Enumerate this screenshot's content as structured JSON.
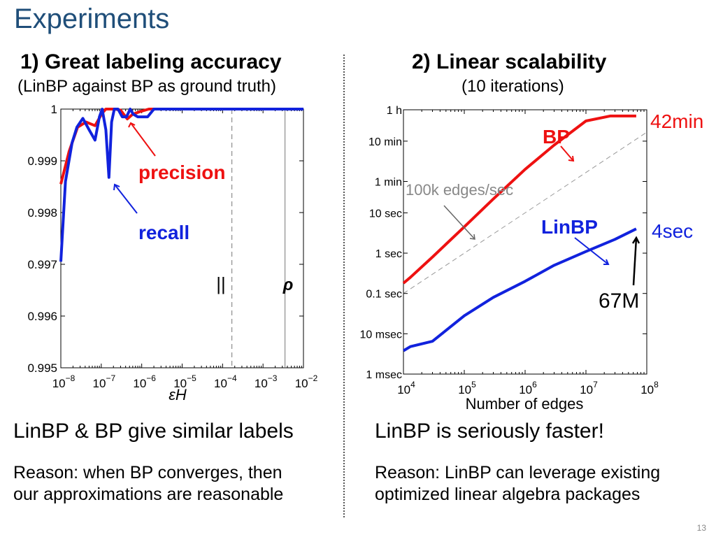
{
  "slide": {
    "title": "Experiments",
    "page_number": "13"
  },
  "left": {
    "heading": "1) Great labeling accuracy",
    "subheading": "(LinBP against BP as ground truth)",
    "conclusion": "LinBP & BP give similar labels",
    "reason_lines": [
      "Reason: when BP converges, then",
      "our approximations are reasonable"
    ]
  },
  "right": {
    "heading": "2) Linear scalability",
    "subheading": "(10 iterations)",
    "conclusion": "LinBP is seriously faster!",
    "reason_lines": [
      "Reason: LinBP can leverage existing",
      "optimized linear algebra packages"
    ]
  },
  "chart_data": [
    {
      "type": "line",
      "xlabel": "εH",
      "ylabel": "",
      "x_scale": "log",
      "xlim": [
        1e-08,
        0.01
      ],
      "ylim": [
        0.995,
        1
      ],
      "x_tick_exponents": [
        -8,
        -7,
        -6,
        -5,
        -4,
        -3,
        -2
      ],
      "y_ticks": [
        "0.995",
        "0.996",
        "0.997",
        "0.998",
        "0.999",
        "1"
      ],
      "series": [
        {
          "name": "precision",
          "color": "#ee1111",
          "x": [
            1e-08,
            1.6e-08,
            2.6e-08,
            4.2e-08,
            7e-08,
            1.05e-07,
            1.3e-07,
            1.6e-07,
            2.2e-07,
            3e-07,
            4.4e-07,
            6e-07,
            9e-07,
            1.5e-06,
            1e-05,
            0.0001,
            0.001,
            0.01
          ],
          "y": [
            0.99855,
            0.99918,
            0.99965,
            0.99975,
            0.99968,
            0.99992,
            1.0,
            1.0,
            1.0,
            0.99998,
            0.99981,
            0.9999,
            0.99995,
            1.0,
            1.0,
            1.0,
            1.0,
            1.0
          ]
        },
        {
          "name": "recall",
          "color": "#1122dd",
          "x": [
            1e-08,
            1.3e-08,
            1.9e-08,
            2.5e-08,
            3.5e-08,
            5e-08,
            7e-08,
            9e-08,
            1.05e-07,
            1.3e-07,
            1.55e-07,
            1.8e-07,
            2.1e-07,
            2.6e-07,
            3.3e-07,
            4.2e-07,
            5.2e-07,
            6.2e-07,
            8e-07,
            1.4e-06,
            2e-06,
            1e-05,
            0.0001,
            0.001,
            0.01
          ],
          "y": [
            0.99705,
            0.9986,
            0.99935,
            0.99965,
            0.99982,
            0.9996,
            0.9994,
            0.99985,
            1.0,
            0.9996,
            0.99868,
            0.99975,
            1.0,
            1.0,
            0.99985,
            0.99985,
            1.0,
            0.9999,
            0.99985,
            0.99985,
            1.0,
            1.0,
            1.0,
            1.0,
            1.0
          ]
        }
      ],
      "annotations": {
        "precision_label": "precision",
        "recall_label": "recall",
        "parallel_symbol": "||",
        "rho_symbol": "ρ"
      },
      "vertical_lines": {
        "dashed_x": 0.00017,
        "solid_x": 0.0035
      },
      "grid": false,
      "legend": "none"
    },
    {
      "type": "line",
      "xlabel": "Number of edges",
      "ylabel": "",
      "x_scale": "log",
      "y_scale": "log",
      "xlim": [
        10000,
        100000000
      ],
      "ylim_seconds": [
        0.001,
        3600
      ],
      "x_tick_exponents": [
        4,
        5,
        6,
        7,
        8
      ],
      "y_ticks": [
        {
          "label": "1 msec",
          "seconds": 0.001
        },
        {
          "label": "10 msec",
          "seconds": 0.01
        },
        {
          "label": "0.1 sec",
          "seconds": 0.1
        },
        {
          "label": "1 sec",
          "seconds": 1
        },
        {
          "label": "10 sec",
          "seconds": 10
        },
        {
          "label": "1 min",
          "seconds": 60
        },
        {
          "label": "10 min",
          "seconds": 600
        },
        {
          "label": "1 h",
          "seconds": 3600
        }
      ],
      "series": [
        {
          "name": "BP",
          "color": "#ee1111",
          "x": [
            10000,
            13000,
            30000,
            100000,
            300000,
            1000000,
            3000000,
            10000000,
            25000000,
            67000000
          ],
          "y": [
            0.18,
            0.25,
            0.8,
            4.5,
            22,
            120,
            480,
            1900,
            2520,
            2520
          ]
        },
        {
          "name": "LinBP",
          "color": "#1122dd",
          "x": [
            10000,
            13000,
            30000,
            100000,
            300000,
            1000000,
            3000000,
            10000000,
            30000000,
            67000000
          ],
          "y": [
            0.0038,
            0.0048,
            0.0065,
            0.028,
            0.08,
            0.2,
            0.5,
            1.1,
            2.2,
            4.0
          ]
        }
      ],
      "reference_line": {
        "label": "100k edges/sec",
        "rate_edges_per_sec": 100000
      },
      "annotations": {
        "bp_label": "BP",
        "linbp_label": "LinBP",
        "bp_end_label": "42min",
        "linbp_end_label": "4sec",
        "size_label": "67M"
      },
      "grid": false,
      "legend": "none"
    }
  ]
}
